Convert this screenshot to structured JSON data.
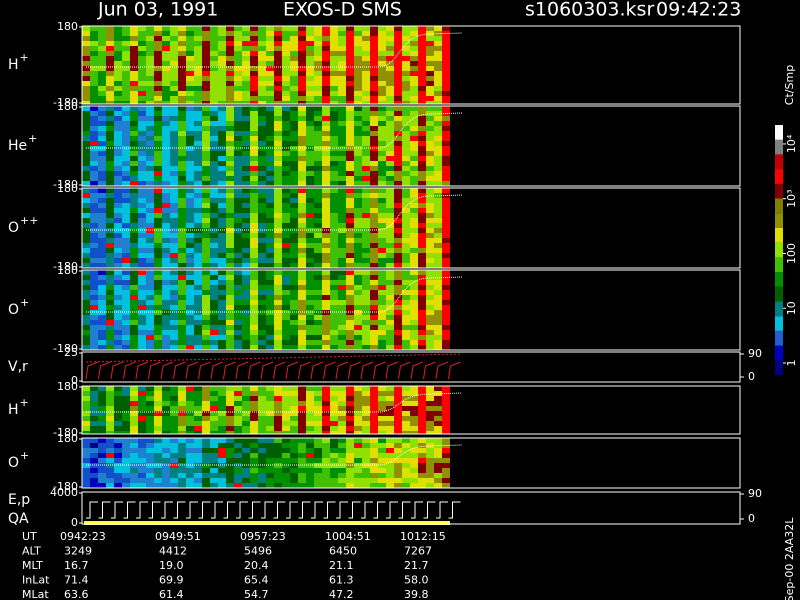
{
  "header": {
    "date": "Jun 03, 1991",
    "instrument": "EXOS-D SMS",
    "file": "s1060303.ksr",
    "time": "09:42:23"
  },
  "panels": [
    {
      "label": "H",
      "sup": "+",
      "yticks": [
        180,
        -180
      ]
    },
    {
      "label": "He",
      "sup": "+",
      "yticks": [
        180,
        -180
      ]
    },
    {
      "label": "O",
      "sup": "++",
      "yticks": [
        180,
        -180
      ]
    },
    {
      "label": "O",
      "sup": "+",
      "yticks": [
        180,
        -180
      ]
    },
    {
      "label": "V,r",
      "yticks": [
        25,
        0
      ],
      "y2ticks": [
        90,
        0
      ]
    },
    {
      "label": "H",
      "sup": "+",
      "yticks": [
        180,
        -180
      ]
    },
    {
      "label": "O",
      "sup": "+",
      "yticks": [
        180,
        -180
      ]
    },
    {
      "label": "E,p",
      "yticks": [
        4000,
        0
      ],
      "y2ticks": [
        90,
        0
      ]
    }
  ],
  "qa_label": "QA",
  "colorbar": {
    "unit": "Ct/Smp",
    "ticks": [
      {
        "value": 1,
        "label": "1"
      },
      {
        "value": 10,
        "label": "10"
      },
      {
        "value": 100,
        "label": "100"
      },
      {
        "value": 1000,
        "label": "10³"
      },
      {
        "value": 10000,
        "label": "10⁴"
      }
    ]
  },
  "table": {
    "rows": [
      {
        "label": "UT",
        "cells": [
          "0942:23",
          "0949:51",
          "0957:23",
          "1004:51",
          "1012:15"
        ]
      },
      {
        "label": "ALT",
        "cells": [
          "3249",
          "4412",
          "5496",
          "6450",
          "7267"
        ]
      },
      {
        "label": "MLT",
        "cells": [
          "16.7",
          "19.0",
          "20.4",
          "21.1",
          "21.7"
        ]
      },
      {
        "label": "InLat",
        "cells": [
          "71.4",
          "69.9",
          "65.4",
          "61.3",
          "58.0"
        ]
      },
      {
        "label": "MLat",
        "cells": [
          "63.6",
          "61.4",
          "54.7",
          "47.2",
          "39.8"
        ]
      }
    ]
  },
  "footer": "Sep-00  2AA32L"
}
